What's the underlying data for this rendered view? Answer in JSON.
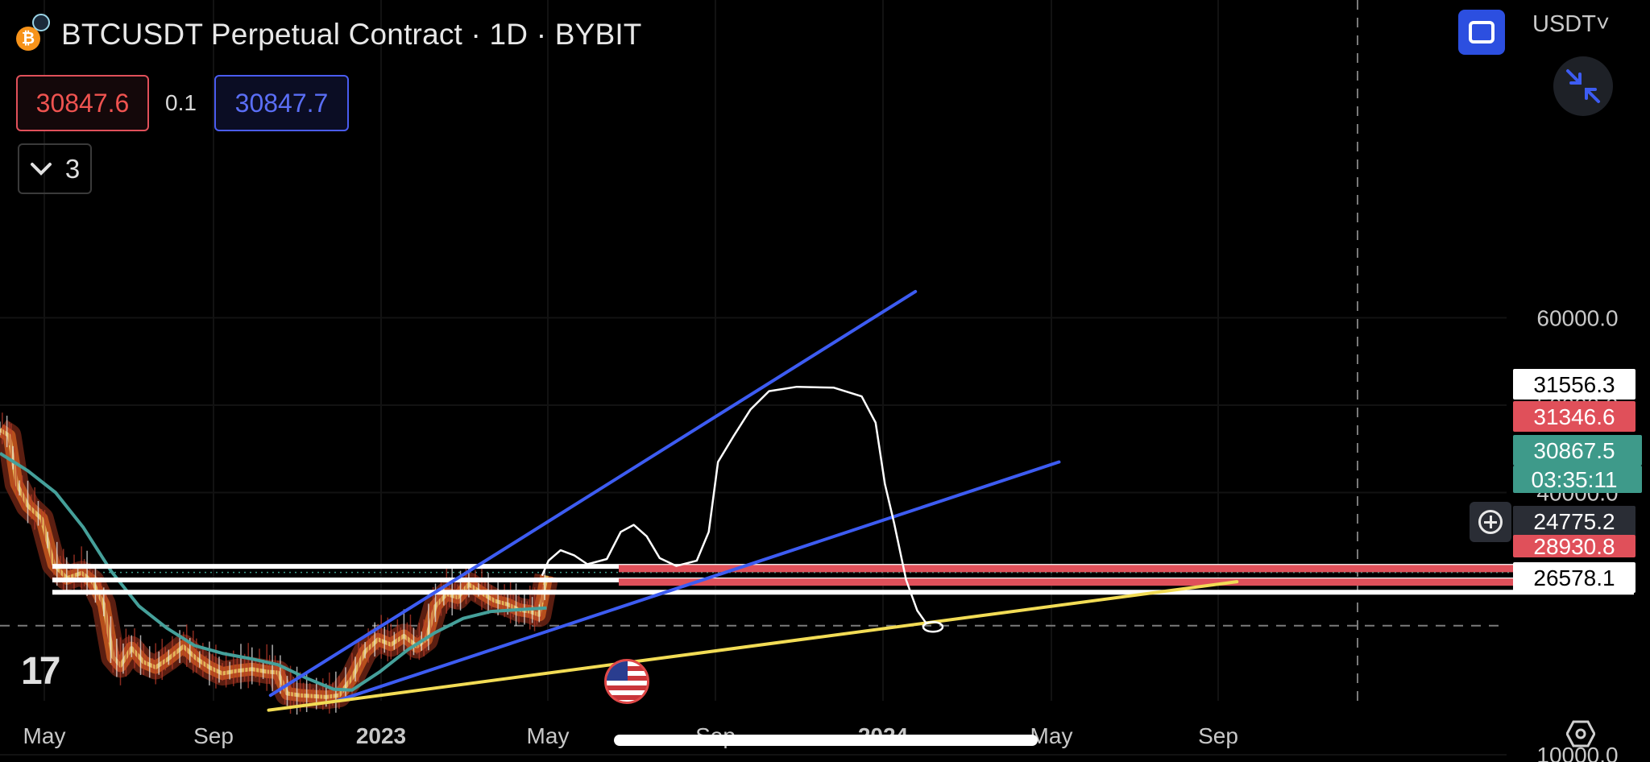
{
  "header": {
    "coin_icon": "bitcoin-icon",
    "coin_symbol": "₿",
    "title": "BTCUSDT Perpetual Contract · 1D · BYBIT"
  },
  "trade": {
    "sell_price": "30847.6",
    "spread": "0.1",
    "buy_price": "30847.7"
  },
  "indicators_toggle": {
    "icon": "chevron-down-icon",
    "count": "3"
  },
  "toolbar": {
    "fullscreen_icon": "fullscreen-icon",
    "currency": "USDT",
    "currency_caret": "˅",
    "collapse_icon": "minimize-arrows-icon",
    "add_icon": "plus-circle-icon",
    "settings_icon": "settings-hexagon-icon"
  },
  "logo": {
    "text": "17"
  },
  "event_icon": "us-flag-icon",
  "colors": {
    "background": "#000000",
    "blue_line": "#3d5cf2",
    "yellow_line": "#f2dc55",
    "red_zone": "#e0505a",
    "teal_ma": "#45a09a",
    "current_price_bg": "#3e9a8a"
  },
  "chart_data": {
    "type": "candlestick",
    "symbol": "BTCUSDT",
    "interval": "1D",
    "exchange": "BYBIT",
    "price_scale": {
      "ticks": [
        "60000.0",
        "50000.0",
        "40000.0",
        "10000.0"
      ],
      "range": [
        8000,
        64000
      ]
    },
    "time_axis": {
      "labels": [
        {
          "text": "May",
          "bold": false
        },
        {
          "text": "Sep",
          "bold": false
        },
        {
          "text": "2023",
          "bold": true
        },
        {
          "text": "May",
          "bold": false
        },
        {
          "text": "Sep",
          "bold": false
        },
        {
          "text": "2024",
          "bold": true
        },
        {
          "text": "May",
          "bold": false
        },
        {
          "text": "Sep",
          "bold": false
        }
      ]
    },
    "price_labels": [
      {
        "value": "31556.3",
        "style": "white"
      },
      {
        "value": "31346.6",
        "style": "red"
      },
      {
        "value": "30867.5",
        "style": "current"
      },
      {
        "value": "03:35:11",
        "style": "current"
      },
      {
        "value": "24775.2",
        "style": "crosshair"
      },
      {
        "value": "28930.8",
        "style": "red"
      },
      {
        "value": "26578.1",
        "style": "white"
      }
    ],
    "current_price": 30867.5,
    "crosshair_price": 24775.2,
    "price_path": [
      [
        0,
        47200
      ],
      [
        10,
        46500
      ],
      [
        18,
        41000
      ],
      [
        30,
        38500
      ],
      [
        45,
        37000
      ],
      [
        58,
        31800
      ],
      [
        72,
        30200
      ],
      [
        88,
        30800
      ],
      [
        100,
        29800
      ],
      [
        112,
        27200
      ],
      [
        122,
        21200
      ],
      [
        130,
        20200
      ],
      [
        142,
        22200
      ],
      [
        155,
        20600
      ],
      [
        168,
        20000
      ],
      [
        182,
        21000
      ],
      [
        198,
        22400
      ],
      [
        212,
        21000
      ],
      [
        226,
        20000
      ],
      [
        240,
        19300
      ],
      [
        256,
        19600
      ],
      [
        272,
        19800
      ],
      [
        288,
        19500
      ],
      [
        300,
        19400
      ],
      [
        310,
        17000
      ],
      [
        324,
        16800
      ],
      [
        338,
        16700
      ],
      [
        352,
        16600
      ],
      [
        366,
        16800
      ],
      [
        380,
        18800
      ],
      [
        394,
        21800
      ],
      [
        408,
        23200
      ],
      [
        422,
        22600
      ],
      [
        436,
        23600
      ],
      [
        450,
        22400
      ],
      [
        460,
        23200
      ],
      [
        470,
        27000
      ],
      [
        482,
        28400
      ],
      [
        494,
        28000
      ],
      [
        506,
        29500
      ],
      [
        520,
        28500
      ],
      [
        534,
        27600
      ],
      [
        548,
        27200
      ],
      [
        560,
        26600
      ],
      [
        572,
        26400
      ],
      [
        582,
        26000
      ],
      [
        590,
        30500
      ]
    ],
    "ma_path": [
      [
        0,
        44500
      ],
      [
        30,
        42500
      ],
      [
        60,
        40000
      ],
      [
        90,
        36000
      ],
      [
        120,
        31000
      ],
      [
        150,
        27000
      ],
      [
        180,
        24500
      ],
      [
        210,
        22500
      ],
      [
        240,
        21600
      ],
      [
        270,
        21000
      ],
      [
        300,
        20300
      ],
      [
        330,
        18800
      ],
      [
        360,
        17500
      ],
      [
        380,
        17400
      ],
      [
        410,
        19500
      ],
      [
        440,
        22000
      ],
      [
        470,
        24000
      ],
      [
        500,
        25600
      ],
      [
        530,
        26400
      ],
      [
        560,
        26600
      ],
      [
        590,
        26800
      ]
    ],
    "drawings": {
      "blue_trendlines": [
        {
          "from": [
            292,
            16800
          ],
          "to": [
            988,
            63000
          ]
        },
        {
          "from": [
            362,
            16100
          ],
          "to": [
            1143,
            43500
          ]
        }
      ],
      "yellow_trendline": {
        "from": [
          290,
          15100
        ],
        "to": [
          1335,
          29800
        ]
      },
      "white_levels": [
        31556.3,
        30000,
        28600
      ],
      "red_zones": [
        31346.6,
        29800
      ],
      "freehand_projection": [
        [
          585,
          30500
        ],
        [
          592,
          32200
        ],
        [
          605,
          33400
        ],
        [
          620,
          32800
        ],
        [
          634,
          31800
        ],
        [
          655,
          32400
        ],
        [
          670,
          35500
        ],
        [
          684,
          36300
        ],
        [
          698,
          35000
        ],
        [
          712,
          32500
        ],
        [
          730,
          31600
        ],
        [
          752,
          32200
        ],
        [
          765,
          35500
        ],
        [
          775,
          43500
        ],
        [
          792,
          46500
        ],
        [
          810,
          49500
        ],
        [
          830,
          51600
        ],
        [
          860,
          52100
        ],
        [
          900,
          52000
        ],
        [
          930,
          51000
        ],
        [
          945,
          48000
        ],
        [
          955,
          41000
        ],
        [
          965,
          36500
        ],
        [
          978,
          30000
        ],
        [
          990,
          26500
        ],
        [
          1000,
          25000
        ]
      ]
    }
  }
}
